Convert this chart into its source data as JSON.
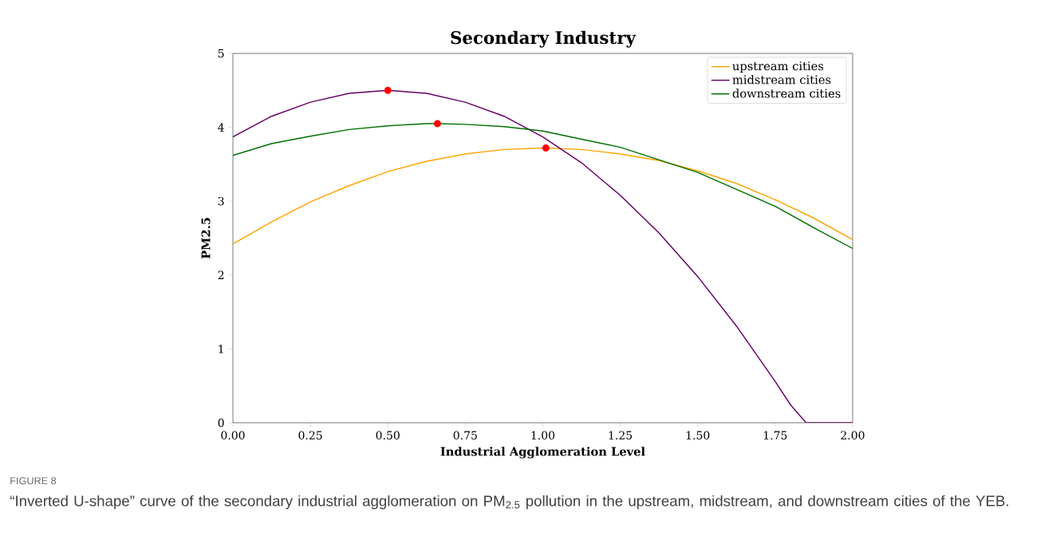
{
  "chart_data": {
    "type": "line",
    "title": "Secondary Industry",
    "xlabel": "Industrial Agglomeration Level",
    "ylabel": "PM2.5",
    "xlim": [
      0,
      2
    ],
    "ylim": [
      0,
      5
    ],
    "xticks": [
      {
        "value": 0,
        "label": "0.00"
      },
      {
        "value": 0.25,
        "label": "0.25"
      },
      {
        "value": 0.5,
        "label": "0.50"
      },
      {
        "value": 0.75,
        "label": "0.75"
      },
      {
        "value": 1,
        "label": "1.00"
      },
      {
        "value": 1.25,
        "label": "1.25"
      },
      {
        "value": 1.5,
        "label": "1.50"
      },
      {
        "value": 1.75,
        "label": "1.75"
      },
      {
        "value": 2,
        "label": "2.00"
      }
    ],
    "yticks": [
      0,
      1,
      2,
      3,
      4,
      5
    ],
    "legend": "top right",
    "grid": false,
    "series": [
      {
        "name": "upstream cities",
        "type": "line",
        "color": "#ffa500",
        "x": [
          0,
          0.125,
          0.25,
          0.375,
          0.5,
          0.625,
          0.75,
          0.875,
          1.0,
          1.125,
          1.25,
          1.375,
          1.5,
          1.625,
          1.75,
          1.875,
          2.0
        ],
        "values": [
          2.42,
          2.72,
          2.99,
          3.21,
          3.4,
          3.54,
          3.64,
          3.7,
          3.72,
          3.7,
          3.64,
          3.55,
          3.41,
          3.24,
          3.02,
          2.77,
          2.48
        ]
      },
      {
        "name": "midstream cities",
        "type": "line",
        "color": "#660066",
        "x": [
          0,
          0.125,
          0.25,
          0.375,
          0.5,
          0.625,
          0.75,
          0.875,
          1.0,
          1.125,
          1.25,
          1.375,
          1.5,
          1.625,
          1.75,
          1.8,
          1.85,
          2.0
        ],
        "values": [
          3.87,
          4.15,
          4.34,
          4.46,
          4.5,
          4.46,
          4.34,
          4.15,
          3.87,
          3.52,
          3.08,
          2.57,
          1.98,
          1.31,
          0.56,
          0.24,
          0,
          0
        ]
      },
      {
        "name": "downstream cities",
        "type": "line",
        "color": "#007000",
        "x": [
          0,
          0.125,
          0.25,
          0.375,
          0.5,
          0.625,
          0.66,
          0.75,
          0.875,
          1.0,
          1.125,
          1.25,
          1.375,
          1.5,
          1.625,
          1.75,
          1.875,
          2.0
        ],
        "values": [
          3.62,
          3.78,
          3.88,
          3.97,
          4.02,
          4.05,
          4.05,
          4.04,
          4.01,
          3.95,
          3.84,
          3.73,
          3.56,
          3.39,
          3.16,
          2.93,
          2.64,
          2.36
        ]
      },
      {
        "type": "scatter",
        "color": "#ff0000",
        "marker": "circle",
        "x": [
          0.5,
          0.66,
          1.01
        ],
        "values": [
          4.5,
          4.05,
          3.72
        ]
      }
    ],
    "annotations": [
      "FIGURE 8",
      "“Inverted U-shape” curve of the secondary industrial agglomeration on PM$_{2.5}$ pollution in the upstream, midstream, and downstream cities of the YEB."
    ]
  }
}
